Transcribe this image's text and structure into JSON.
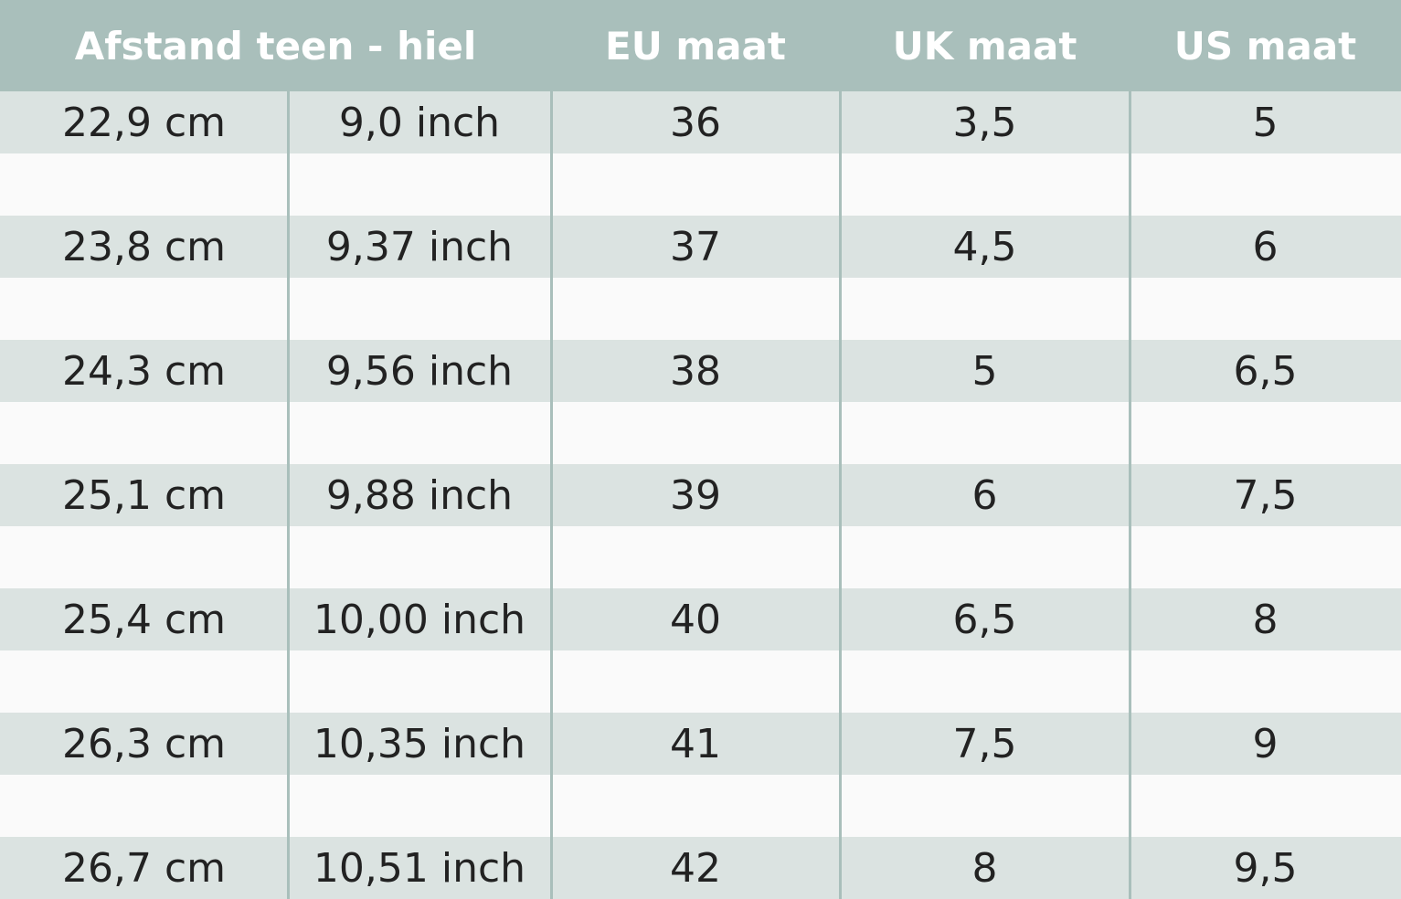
{
  "table": {
    "header": [
      "Afstand teen - hiel",
      "EU maat",
      "UK maat",
      "US maat"
    ],
    "rows": [
      [
        "22,9 cm",
        "9,0 inch",
        "36",
        "3,5",
        "5"
      ],
      [
        "23,8 cm",
        "9,37 inch",
        "37",
        "4,5",
        "6"
      ],
      [
        "24,3 cm",
        "9,56 inch",
        "38",
        "5",
        "6,5"
      ],
      [
        "25,1 cm",
        "9,88 inch",
        "39",
        "6",
        "7,5"
      ],
      [
        "25,4 cm",
        "10,00 inch",
        "40",
        "6,5",
        "8"
      ],
      [
        "26,3 cm",
        "10,35 inch",
        "41",
        "7,5",
        "9"
      ],
      [
        "26,7 cm",
        "10,51 inch",
        "42",
        "8",
        "9,5"
      ]
    ]
  }
}
